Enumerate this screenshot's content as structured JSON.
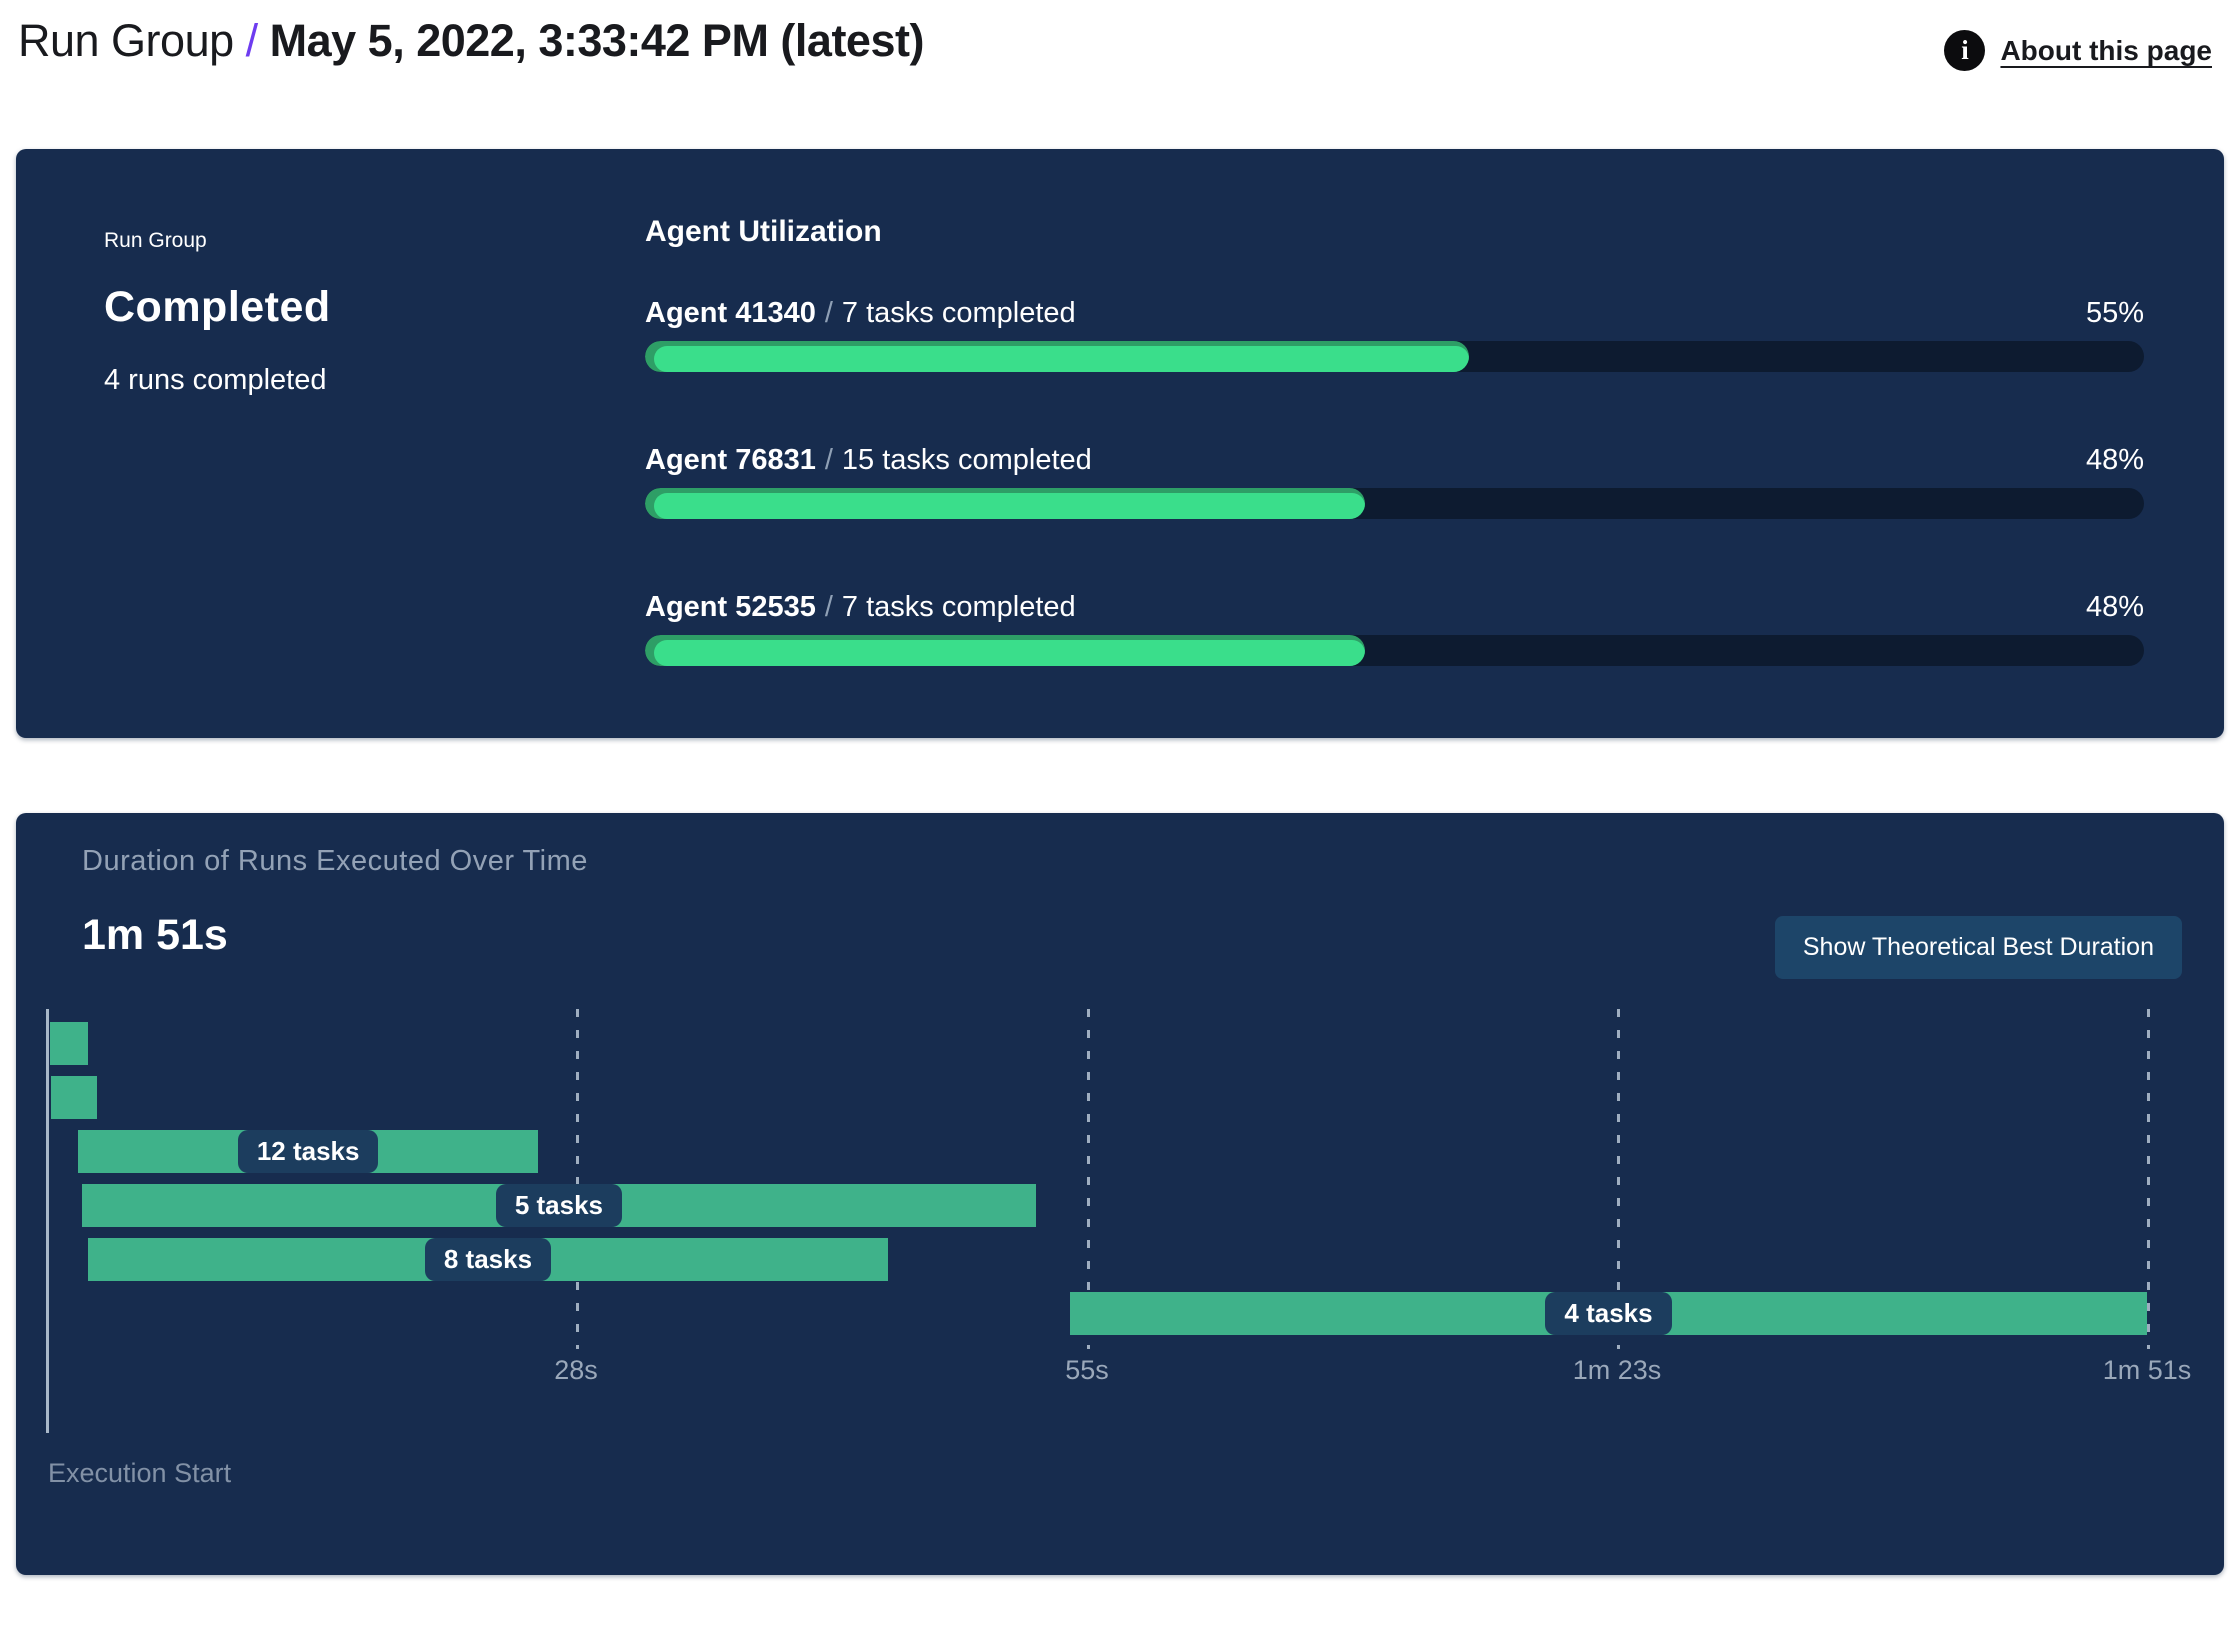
{
  "header": {
    "breadcrumb_root": "Run Group",
    "separator": "/",
    "title": "May 5, 2022, 3:33:42 PM (latest)",
    "info_icon": "i",
    "about_link": "About this page"
  },
  "status_panel": {
    "eyebrow": "Run Group",
    "status": "Completed",
    "subtitle": "4 runs completed"
  },
  "agent_utilization": {
    "title": "Agent Utilization",
    "separator": "/",
    "agents": [
      {
        "name": "Agent 41340",
        "tasks": "7 tasks completed",
        "percent": 55,
        "percent_label": "55%"
      },
      {
        "name": "Agent 76831",
        "tasks": "15 tasks completed",
        "percent": 48,
        "percent_label": "48%"
      },
      {
        "name": "Agent 52535",
        "tasks": "7 tasks completed",
        "percent": 48,
        "percent_label": "48%"
      }
    ]
  },
  "duration_panel": {
    "title": "Duration of Runs Executed Over Time",
    "total_duration": "1m 51s",
    "button_label": "Show Theoretical Best Duration",
    "execution_start_label": "Execution Start"
  },
  "chart_data": {
    "type": "gantt",
    "unit": "seconds",
    "x_max_seconds": 111,
    "x_ticks": [
      {
        "label": "28s",
        "seconds": 28
      },
      {
        "label": "55s",
        "seconds": 55
      },
      {
        "label": "1m 23s",
        "seconds": 83
      },
      {
        "label": "1m 51s",
        "seconds": 111
      }
    ],
    "bars": [
      {
        "start_seconds": 0.2,
        "end_seconds": 2.2,
        "label": ""
      },
      {
        "start_seconds": 0.25,
        "end_seconds": 2.7,
        "label": ""
      },
      {
        "start_seconds": 1.7,
        "end_seconds": 26.0,
        "label": "12 tasks"
      },
      {
        "start_seconds": 1.9,
        "end_seconds": 52.3,
        "label": "5 tasks"
      },
      {
        "start_seconds": 2.2,
        "end_seconds": 44.5,
        "label": "8 tasks"
      },
      {
        "start_seconds": 54.1,
        "end_seconds": 111.0,
        "label": "4 tasks"
      }
    ]
  },
  "colors": {
    "accent_purple": "#6e3cf0",
    "panel_bg": "#172C4E",
    "progress_track": "#0D1B30",
    "progress_fill": "#3ADE8B",
    "progress_fill_rim": "#2E9E66",
    "gantt_bar": "#3FB28A",
    "pill_bg": "#1C3D5E",
    "button_bg": "#1D4569",
    "muted_text": "#93A2B6"
  }
}
